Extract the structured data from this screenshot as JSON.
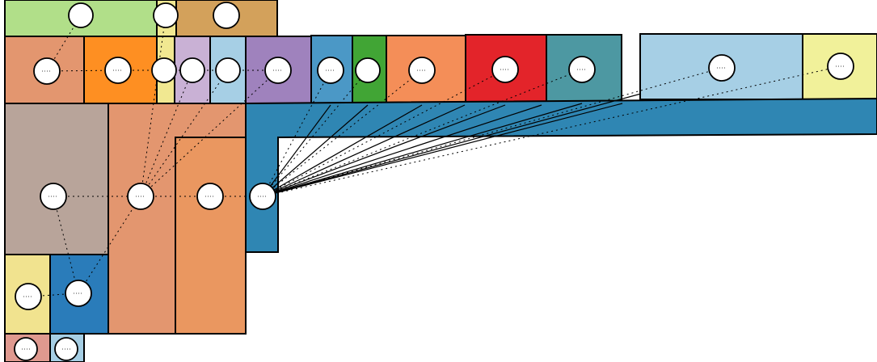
{
  "diagram": {
    "type": "treemap-with-node-links",
    "labels_visible": false
  },
  "regions": [
    {
      "id": "green-top",
      "color": "#b1df89"
    },
    {
      "id": "yellow-top",
      "color": "#f1e891"
    },
    {
      "id": "tan-top",
      "color": "#d3a15b"
    },
    {
      "id": "salmon-1",
      "color": "#e3966f"
    },
    {
      "id": "orange-1",
      "color": "#fe8f22"
    },
    {
      "id": "yellow-strip",
      "color": "#f1e891"
    },
    {
      "id": "lilac",
      "color": "#c9b1d5"
    },
    {
      "id": "lightblue-1",
      "color": "#a6cfe5"
    },
    {
      "id": "purple",
      "color": "#9f82bd"
    },
    {
      "id": "blue-1",
      "color": "#4b98c6"
    },
    {
      "id": "green-1",
      "color": "#41a535"
    },
    {
      "id": "orange-2",
      "color": "#f48e58"
    },
    {
      "id": "red",
      "color": "#e3242a"
    },
    {
      "id": "teal",
      "color": "#4d98a2"
    },
    {
      "id": "lightblue-2",
      "color": "#a6cfe5"
    },
    {
      "id": "yellow-right",
      "color": "#f1f19a"
    },
    {
      "id": "taupe",
      "color": "#b8a49a"
    },
    {
      "id": "salmon-tall",
      "color": "#e3966f"
    },
    {
      "id": "orange-tall",
      "color": "#ea9760"
    },
    {
      "id": "steel-blue",
      "color": "#2f86b3"
    },
    {
      "id": "yellow-bl",
      "color": "#f1e38f"
    },
    {
      "id": "blue-bl",
      "color": "#2a7cba"
    },
    {
      "id": "pink-bottom",
      "color": "#df998f"
    },
    {
      "id": "lightblue-bottom",
      "color": "#a6cfe5"
    }
  ],
  "hub_node": "hub-steel",
  "style": {
    "outline_color": "#000000",
    "node_fill": "#ffffff",
    "link_color": "#000000"
  }
}
